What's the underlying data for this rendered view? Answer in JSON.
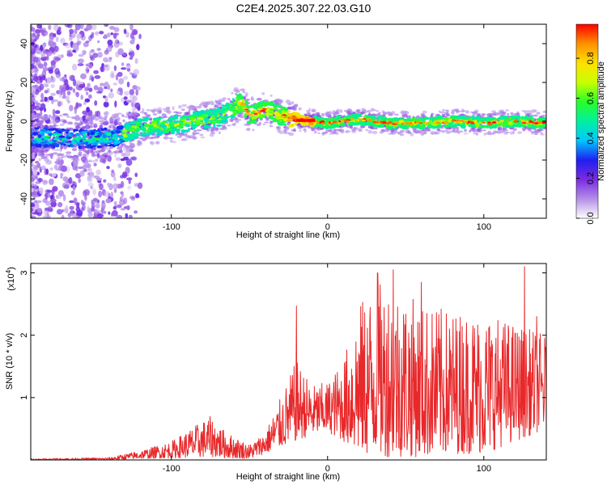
{
  "title": "C2E4.2025.307.22.03.G10",
  "colors": {
    "line": "#e8282a",
    "frame": "#000000"
  },
  "chart_data": [
    {
      "type": "heatmap",
      "xlabel": "Height of straight line (km)",
      "ylabel": "Frequency (Hz)",
      "xlim": [
        -190,
        140
      ],
      "ylim": [
        -50,
        50
      ],
      "xticks": [
        -100,
        0,
        100
      ],
      "yticks": [
        -40,
        -20,
        0,
        20,
        40
      ],
      "colorbar": {
        "label": "Normalized spectral amplitude",
        "range": [
          0.0,
          0.97
        ],
        "ticks": [
          0.0,
          0.2,
          0.4,
          0.6,
          0.8
        ],
        "colors": [
          "#ffffff",
          "#b38ee8",
          "#7a2be0",
          "#1f1ff0",
          "#00c8ff",
          "#00f0a0",
          "#28ff28",
          "#c8ff00",
          "#ffe000",
          "#ff9000",
          "#ff0000"
        ]
      },
      "ridge": [
        {
          "x": -190,
          "y": -8
        },
        {
          "x": -165,
          "y": -9
        },
        {
          "x": -150,
          "y": -9
        },
        {
          "x": -135,
          "y": -8
        },
        {
          "x": -120,
          "y": -3
        },
        {
          "x": -100,
          "y": -2
        },
        {
          "x": -85,
          "y": 0
        },
        {
          "x": -70,
          "y": 2
        },
        {
          "x": -60,
          "y": 7
        },
        {
          "x": -55,
          "y": 10
        },
        {
          "x": -50,
          "y": 3
        },
        {
          "x": -40,
          "y": 6
        },
        {
          "x": -30,
          "y": 3
        },
        {
          "x": -25,
          "y": 2
        },
        {
          "x": -10,
          "y": 0
        },
        {
          "x": 0,
          "y": -1
        },
        {
          "x": 20,
          "y": 1
        },
        {
          "x": 40,
          "y": -1
        },
        {
          "x": 60,
          "y": -1
        },
        {
          "x": 80,
          "y": 0
        },
        {
          "x": 100,
          "y": -1
        },
        {
          "x": 120,
          "y": 0
        },
        {
          "x": 140,
          "y": -1
        }
      ]
    },
    {
      "type": "line",
      "xlabel": "Height of straight line (km)",
      "ylabel": "SNR (10 * v/v)",
      "y_multiplier": "(x10",
      "y_multiplier_exp": "4",
      "xlim": [
        -190,
        140
      ],
      "ylim": [
        0,
        3.15
      ],
      "xticks": [
        -100,
        0,
        100
      ],
      "yticks": [
        1,
        2,
        3
      ],
      "envelope": [
        {
          "x": -190,
          "lo": 0.0,
          "hi": 0.02
        },
        {
          "x": -140,
          "lo": 0.0,
          "hi": 0.04
        },
        {
          "x": -120,
          "lo": 0.02,
          "hi": 0.15
        },
        {
          "x": -100,
          "lo": 0.03,
          "hi": 0.3
        },
        {
          "x": -85,
          "lo": 0.04,
          "hi": 0.55
        },
        {
          "x": -75,
          "lo": 0.05,
          "hi": 0.7
        },
        {
          "x": -65,
          "lo": 0.03,
          "hi": 0.45
        },
        {
          "x": -50,
          "lo": 0.02,
          "hi": 0.25
        },
        {
          "x": -40,
          "lo": 0.1,
          "hi": 0.45
        },
        {
          "x": -30,
          "lo": 0.2,
          "hi": 1.0
        },
        {
          "x": -20,
          "lo": 0.3,
          "hi": 1.6
        },
        {
          "x": -10,
          "lo": 0.4,
          "hi": 1.2
        },
        {
          "x": 0,
          "lo": 0.45,
          "hi": 1.25
        },
        {
          "x": 10,
          "lo": 0.3,
          "hi": 1.6
        },
        {
          "x": 20,
          "lo": 0.1,
          "hi": 2.5
        },
        {
          "x": 30,
          "lo": 0.05,
          "hi": 2.8
        },
        {
          "x": 40,
          "lo": 0.05,
          "hi": 2.9
        },
        {
          "x": 60,
          "lo": 0.05,
          "hi": 2.5
        },
        {
          "x": 80,
          "lo": 0.1,
          "hi": 2.4
        },
        {
          "x": 100,
          "lo": 0.1,
          "hi": 2.4
        },
        {
          "x": 120,
          "lo": 0.3,
          "hi": 2.2
        },
        {
          "x": 140,
          "lo": 0.5,
          "hi": 2.0
        }
      ],
      "peaks": [
        {
          "x": -20,
          "y": 2.47
        },
        {
          "x": 32,
          "y": 3.0
        },
        {
          "x": 42,
          "y": 3.05
        },
        {
          "x": 60,
          "y": 2.85
        },
        {
          "x": 126,
          "y": 3.1
        },
        {
          "x": 134,
          "y": 2.3
        }
      ]
    }
  ]
}
